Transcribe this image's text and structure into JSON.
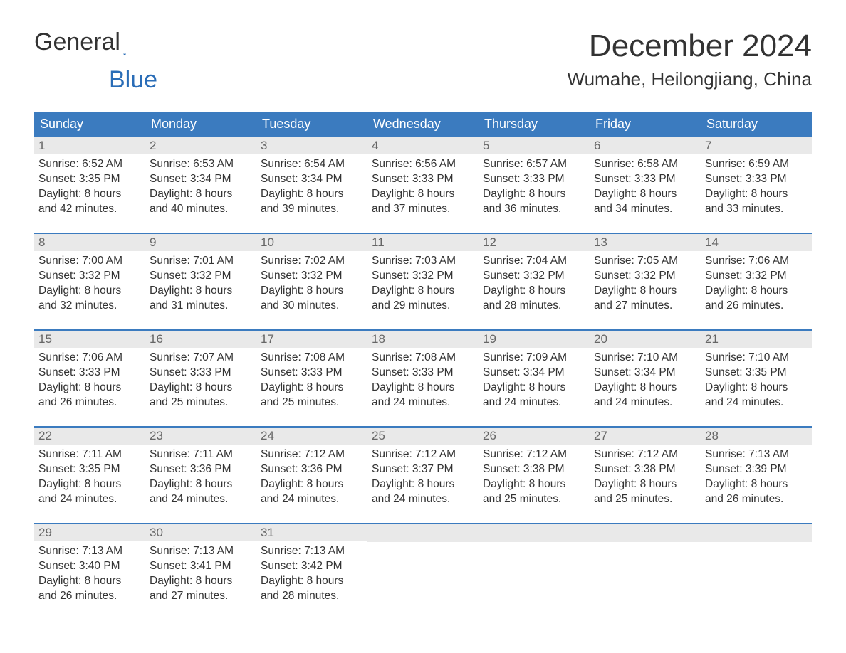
{
  "logo": {
    "text1": "General",
    "text2": "Blue"
  },
  "month_title": "December 2024",
  "location": "Wumahe, Heilongjiang, China",
  "theme": {
    "header_bg": "#3b7bbf",
    "header_fg": "#ffffff",
    "band_bg": "#e9e9e9",
    "band_fg": "#666666",
    "border_color": "#3b7bbf",
    "page_bg": "#ffffff",
    "text_color": "#333333",
    "accent_color": "#2a6db7"
  },
  "weekdays": [
    "Sunday",
    "Monday",
    "Tuesday",
    "Wednesday",
    "Thursday",
    "Friday",
    "Saturday"
  ],
  "weeks": [
    [
      {
        "n": "1",
        "sr": "Sunrise: 6:52 AM",
        "ss": "Sunset: 3:35 PM",
        "dl1": "Daylight: 8 hours",
        "dl2": "and 42 minutes."
      },
      {
        "n": "2",
        "sr": "Sunrise: 6:53 AM",
        "ss": "Sunset: 3:34 PM",
        "dl1": "Daylight: 8 hours",
        "dl2": "and 40 minutes."
      },
      {
        "n": "3",
        "sr": "Sunrise: 6:54 AM",
        "ss": "Sunset: 3:34 PM",
        "dl1": "Daylight: 8 hours",
        "dl2": "and 39 minutes."
      },
      {
        "n": "4",
        "sr": "Sunrise: 6:56 AM",
        "ss": "Sunset: 3:33 PM",
        "dl1": "Daylight: 8 hours",
        "dl2": "and 37 minutes."
      },
      {
        "n": "5",
        "sr": "Sunrise: 6:57 AM",
        "ss": "Sunset: 3:33 PM",
        "dl1": "Daylight: 8 hours",
        "dl2": "and 36 minutes."
      },
      {
        "n": "6",
        "sr": "Sunrise: 6:58 AM",
        "ss": "Sunset: 3:33 PM",
        "dl1": "Daylight: 8 hours",
        "dl2": "and 34 minutes."
      },
      {
        "n": "7",
        "sr": "Sunrise: 6:59 AM",
        "ss": "Sunset: 3:33 PM",
        "dl1": "Daylight: 8 hours",
        "dl2": "and 33 minutes."
      }
    ],
    [
      {
        "n": "8",
        "sr": "Sunrise: 7:00 AM",
        "ss": "Sunset: 3:32 PM",
        "dl1": "Daylight: 8 hours",
        "dl2": "and 32 minutes."
      },
      {
        "n": "9",
        "sr": "Sunrise: 7:01 AM",
        "ss": "Sunset: 3:32 PM",
        "dl1": "Daylight: 8 hours",
        "dl2": "and 31 minutes."
      },
      {
        "n": "10",
        "sr": "Sunrise: 7:02 AM",
        "ss": "Sunset: 3:32 PM",
        "dl1": "Daylight: 8 hours",
        "dl2": "and 30 minutes."
      },
      {
        "n": "11",
        "sr": "Sunrise: 7:03 AM",
        "ss": "Sunset: 3:32 PM",
        "dl1": "Daylight: 8 hours",
        "dl2": "and 29 minutes."
      },
      {
        "n": "12",
        "sr": "Sunrise: 7:04 AM",
        "ss": "Sunset: 3:32 PM",
        "dl1": "Daylight: 8 hours",
        "dl2": "and 28 minutes."
      },
      {
        "n": "13",
        "sr": "Sunrise: 7:05 AM",
        "ss": "Sunset: 3:32 PM",
        "dl1": "Daylight: 8 hours",
        "dl2": "and 27 minutes."
      },
      {
        "n": "14",
        "sr": "Sunrise: 7:06 AM",
        "ss": "Sunset: 3:32 PM",
        "dl1": "Daylight: 8 hours",
        "dl2": "and 26 minutes."
      }
    ],
    [
      {
        "n": "15",
        "sr": "Sunrise: 7:06 AM",
        "ss": "Sunset: 3:33 PM",
        "dl1": "Daylight: 8 hours",
        "dl2": "and 26 minutes."
      },
      {
        "n": "16",
        "sr": "Sunrise: 7:07 AM",
        "ss": "Sunset: 3:33 PM",
        "dl1": "Daylight: 8 hours",
        "dl2": "and 25 minutes."
      },
      {
        "n": "17",
        "sr": "Sunrise: 7:08 AM",
        "ss": "Sunset: 3:33 PM",
        "dl1": "Daylight: 8 hours",
        "dl2": "and 25 minutes."
      },
      {
        "n": "18",
        "sr": "Sunrise: 7:08 AM",
        "ss": "Sunset: 3:33 PM",
        "dl1": "Daylight: 8 hours",
        "dl2": "and 24 minutes."
      },
      {
        "n": "19",
        "sr": "Sunrise: 7:09 AM",
        "ss": "Sunset: 3:34 PM",
        "dl1": "Daylight: 8 hours",
        "dl2": "and 24 minutes."
      },
      {
        "n": "20",
        "sr": "Sunrise: 7:10 AM",
        "ss": "Sunset: 3:34 PM",
        "dl1": "Daylight: 8 hours",
        "dl2": "and 24 minutes."
      },
      {
        "n": "21",
        "sr": "Sunrise: 7:10 AM",
        "ss": "Sunset: 3:35 PM",
        "dl1": "Daylight: 8 hours",
        "dl2": "and 24 minutes."
      }
    ],
    [
      {
        "n": "22",
        "sr": "Sunrise: 7:11 AM",
        "ss": "Sunset: 3:35 PM",
        "dl1": "Daylight: 8 hours",
        "dl2": "and 24 minutes."
      },
      {
        "n": "23",
        "sr": "Sunrise: 7:11 AM",
        "ss": "Sunset: 3:36 PM",
        "dl1": "Daylight: 8 hours",
        "dl2": "and 24 minutes."
      },
      {
        "n": "24",
        "sr": "Sunrise: 7:12 AM",
        "ss": "Sunset: 3:36 PM",
        "dl1": "Daylight: 8 hours",
        "dl2": "and 24 minutes."
      },
      {
        "n": "25",
        "sr": "Sunrise: 7:12 AM",
        "ss": "Sunset: 3:37 PM",
        "dl1": "Daylight: 8 hours",
        "dl2": "and 24 minutes."
      },
      {
        "n": "26",
        "sr": "Sunrise: 7:12 AM",
        "ss": "Sunset: 3:38 PM",
        "dl1": "Daylight: 8 hours",
        "dl2": "and 25 minutes."
      },
      {
        "n": "27",
        "sr": "Sunrise: 7:12 AM",
        "ss": "Sunset: 3:38 PM",
        "dl1": "Daylight: 8 hours",
        "dl2": "and 25 minutes."
      },
      {
        "n": "28",
        "sr": "Sunrise: 7:13 AM",
        "ss": "Sunset: 3:39 PM",
        "dl1": "Daylight: 8 hours",
        "dl2": "and 26 minutes."
      }
    ],
    [
      {
        "n": "29",
        "sr": "Sunrise: 7:13 AM",
        "ss": "Sunset: 3:40 PM",
        "dl1": "Daylight: 8 hours",
        "dl2": "and 26 minutes."
      },
      {
        "n": "30",
        "sr": "Sunrise: 7:13 AM",
        "ss": "Sunset: 3:41 PM",
        "dl1": "Daylight: 8 hours",
        "dl2": "and 27 minutes."
      },
      {
        "n": "31",
        "sr": "Sunrise: 7:13 AM",
        "ss": "Sunset: 3:42 PM",
        "dl1": "Daylight: 8 hours",
        "dl2": "and 28 minutes."
      },
      null,
      null,
      null,
      null
    ]
  ]
}
